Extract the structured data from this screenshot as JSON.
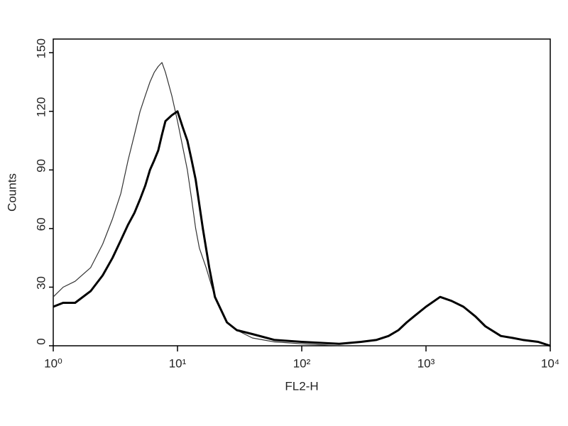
{
  "chart_data": {
    "type": "line",
    "x_label": "FL2-H",
    "y_label": "Counts",
    "x_scale": "log",
    "xlim": [
      1,
      10000
    ],
    "xticks": [
      {
        "value": 1,
        "label": "10⁰"
      },
      {
        "value": 10,
        "label": "10¹"
      },
      {
        "value": 100,
        "label": "10²"
      },
      {
        "value": 1000,
        "label": "10³"
      },
      {
        "value": 10000,
        "label": "10⁴"
      }
    ],
    "ylim": [
      0,
      157
    ],
    "yticks": [
      0,
      30,
      60,
      90,
      120,
      150
    ],
    "series": [
      {
        "color": "#333333",
        "width": 1.2,
        "x": [
          1,
          1.2,
          1.5,
          2,
          2.5,
          3,
          3.5,
          4,
          4.5,
          5,
          5.5,
          6,
          6.5,
          7,
          7.5,
          8,
          9,
          10,
          11,
          12,
          13,
          14,
          15,
          17,
          20,
          25,
          30,
          40,
          60,
          100,
          200,
          500,
          1000,
          10000
        ],
        "values": [
          25,
          30,
          33,
          40,
          52,
          65,
          78,
          95,
          108,
          120,
          128,
          135,
          140,
          143,
          145,
          140,
          128,
          115,
          102,
          90,
          75,
          60,
          50,
          40,
          25,
          12,
          8,
          4,
          2,
          1,
          0,
          0,
          0,
          0
        ]
      },
      {
        "color": "#000000",
        "width": 3,
        "x": [
          1,
          1.2,
          1.5,
          2,
          2.5,
          3,
          3.5,
          4,
          4.5,
          5,
          5.5,
          6,
          6.5,
          7,
          7.5,
          8,
          9,
          10,
          11,
          12,
          13,
          14,
          16,
          18,
          20,
          25,
          30,
          40,
          60,
          100,
          200,
          300,
          400,
          500,
          600,
          700,
          800,
          1000,
          1300,
          1600,
          2000,
          2500,
          3000,
          4000,
          5000,
          6000,
          8000,
          10000
        ],
        "values": [
          20,
          22,
          22,
          28,
          36,
          45,
          54,
          62,
          68,
          75,
          82,
          90,
          95,
          100,
          108,
          115,
          118,
          120,
          112,
          105,
          95,
          85,
          60,
          40,
          25,
          12,
          8,
          6,
          3,
          2,
          1,
          2,
          3,
          5,
          8,
          12,
          15,
          20,
          25,
          23,
          20,
          15,
          10,
          5,
          4,
          3,
          2,
          0
        ]
      }
    ]
  }
}
